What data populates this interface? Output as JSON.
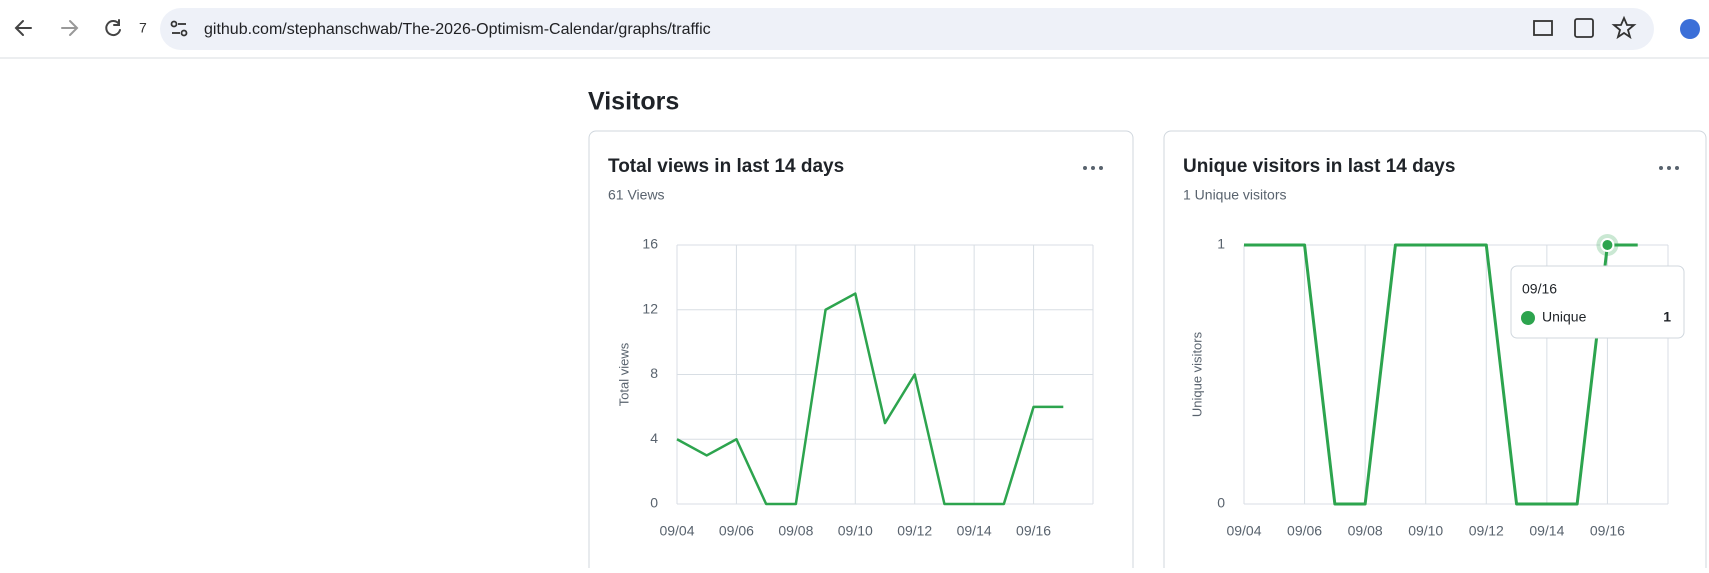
{
  "browser": {
    "badge": "7",
    "url": "github.com/stephanschwab/The-2026-Optimism-Calendar/graphs/traffic"
  },
  "heading": "Visitors",
  "chart_data": [
    {
      "type": "line",
      "title": "Total views in last 14 days",
      "subtitle": "61 Views",
      "y_label": "Total views",
      "categories": [
        "09/04",
        null,
        "09/06",
        null,
        "09/08",
        null,
        "09/10",
        null,
        "09/12",
        null,
        "09/14",
        null,
        "09/16",
        null
      ],
      "series": [
        {
          "color": "#2da44e",
          "values": [
            4,
            3,
            4,
            0,
            0,
            12,
            13,
            5,
            8,
            0,
            0,
            0,
            6,
            6
          ]
        }
      ],
      "ylim": [
        0,
        16
      ],
      "yticks": [
        0,
        4,
        8,
        12,
        16
      ],
      "grid": true
    },
    {
      "type": "line",
      "title": "Unique visitors in last 14 days",
      "subtitle": "1 Unique visitors",
      "y_label": "Unique visitors",
      "categories": [
        "09/04",
        null,
        "09/06",
        null,
        "09/08",
        null,
        "09/10",
        null,
        "09/12",
        null,
        "09/14",
        null,
        "09/16",
        null
      ],
      "series": [
        {
          "name": "Unique",
          "color": "#2da44e",
          "values": [
            1,
            1,
            1,
            0,
            0,
            1,
            1,
            1,
            1,
            0,
            0,
            0,
            1,
            1
          ]
        }
      ],
      "ylim": [
        0,
        1
      ],
      "yticks": [
        0,
        1
      ],
      "grid": true
    }
  ]
}
